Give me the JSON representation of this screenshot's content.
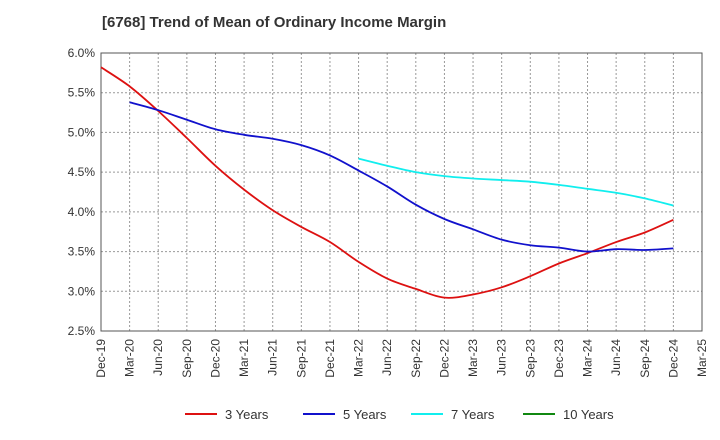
{
  "chart_data": {
    "type": "line",
    "title": "[6768]  Trend of Mean of Ordinary Income Margin",
    "xlabel": "",
    "ylabel": "",
    "ylim": [
      2.5,
      6.0
    ],
    "yticks": [
      "6.0%",
      "5.5%",
      "5.0%",
      "4.5%",
      "4.0%",
      "3.5%",
      "3.0%",
      "2.5%"
    ],
    "ytick_values": [
      6.0,
      5.5,
      5.0,
      4.5,
      4.0,
      3.5,
      3.0,
      2.5
    ],
    "x_categories": [
      "Dec-19",
      "Mar-20",
      "Jun-20",
      "Sep-20",
      "Dec-20",
      "Mar-21",
      "Jun-21",
      "Sep-21",
      "Dec-21",
      "Mar-22",
      "Jun-22",
      "Sep-22",
      "Dec-22",
      "Mar-23",
      "Jun-23",
      "Sep-23",
      "Dec-23",
      "Mar-24",
      "Jun-24",
      "Sep-24",
      "Dec-24",
      "Mar-25"
    ],
    "grid": true,
    "legend_position": "bottom",
    "series": [
      {
        "name": "3 Years",
        "color": "#dd1111",
        "values": [
          5.82,
          5.58,
          5.27,
          4.93,
          4.58,
          4.28,
          4.02,
          3.81,
          3.62,
          3.37,
          3.16,
          3.03,
          2.92,
          2.96,
          3.05,
          3.19,
          3.35,
          3.48,
          3.62,
          3.74,
          3.9,
          null
        ]
      },
      {
        "name": "5 Years",
        "color": "#1111cc",
        "values": [
          null,
          5.38,
          5.28,
          5.16,
          5.04,
          4.97,
          4.92,
          4.84,
          4.71,
          4.52,
          4.32,
          4.09,
          3.91,
          3.78,
          3.65,
          3.58,
          3.55,
          3.5,
          3.53,
          3.52,
          3.54,
          null
        ]
      },
      {
        "name": "7 Years",
        "color": "#11eeee",
        "values": [
          null,
          null,
          null,
          null,
          null,
          null,
          null,
          null,
          null,
          4.67,
          4.58,
          4.5,
          4.45,
          4.42,
          4.4,
          4.38,
          4.34,
          4.29,
          4.24,
          4.17,
          4.08,
          null
        ]
      },
      {
        "name": "10 Years",
        "color": "#118811",
        "values": [
          null,
          null,
          null,
          null,
          null,
          null,
          null,
          null,
          null,
          null,
          null,
          null,
          null,
          null,
          null,
          null,
          null,
          null,
          null,
          null,
          null,
          null
        ]
      }
    ]
  }
}
